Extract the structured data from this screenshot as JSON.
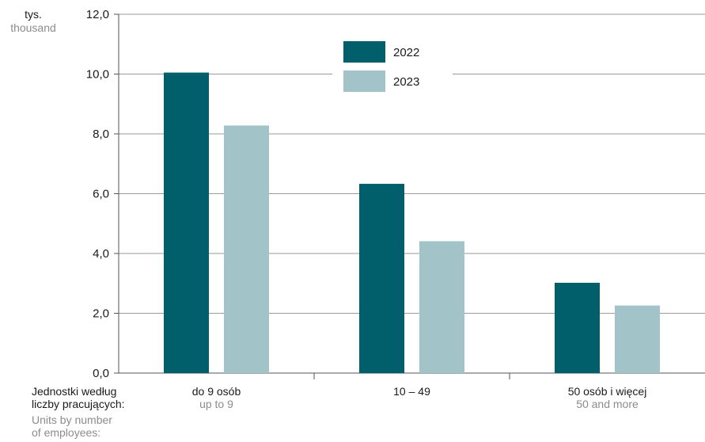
{
  "chart_data": {
    "type": "bar",
    "unit_pl": "tys.",
    "unit_en": "thousand",
    "categories": [
      {
        "pl": "do 9 osób",
        "en": "up to 9"
      },
      {
        "pl": "10 – 49",
        "en": ""
      },
      {
        "pl": "50 osób i więcej",
        "en": "50 and more"
      }
    ],
    "series": [
      {
        "name": "2022",
        "color": "#005f6b",
        "values": [
          10.05,
          6.33,
          3.02
        ]
      },
      {
        "name": "2023",
        "color": "#a2c3c8",
        "values": [
          8.28,
          4.41,
          2.26
        ]
      }
    ],
    "ylim": [
      0,
      12
    ],
    "yticks": [
      "0,0",
      "2,0",
      "4,0",
      "6,0",
      "8,0",
      "10,0",
      "12,0"
    ],
    "xlabel_pl": [
      "Jednostki według",
      "liczby pracujących:"
    ],
    "xlabel_en": [
      "Units by number",
      "of employees:"
    ],
    "grid": true,
    "legend_position": "top-center"
  }
}
